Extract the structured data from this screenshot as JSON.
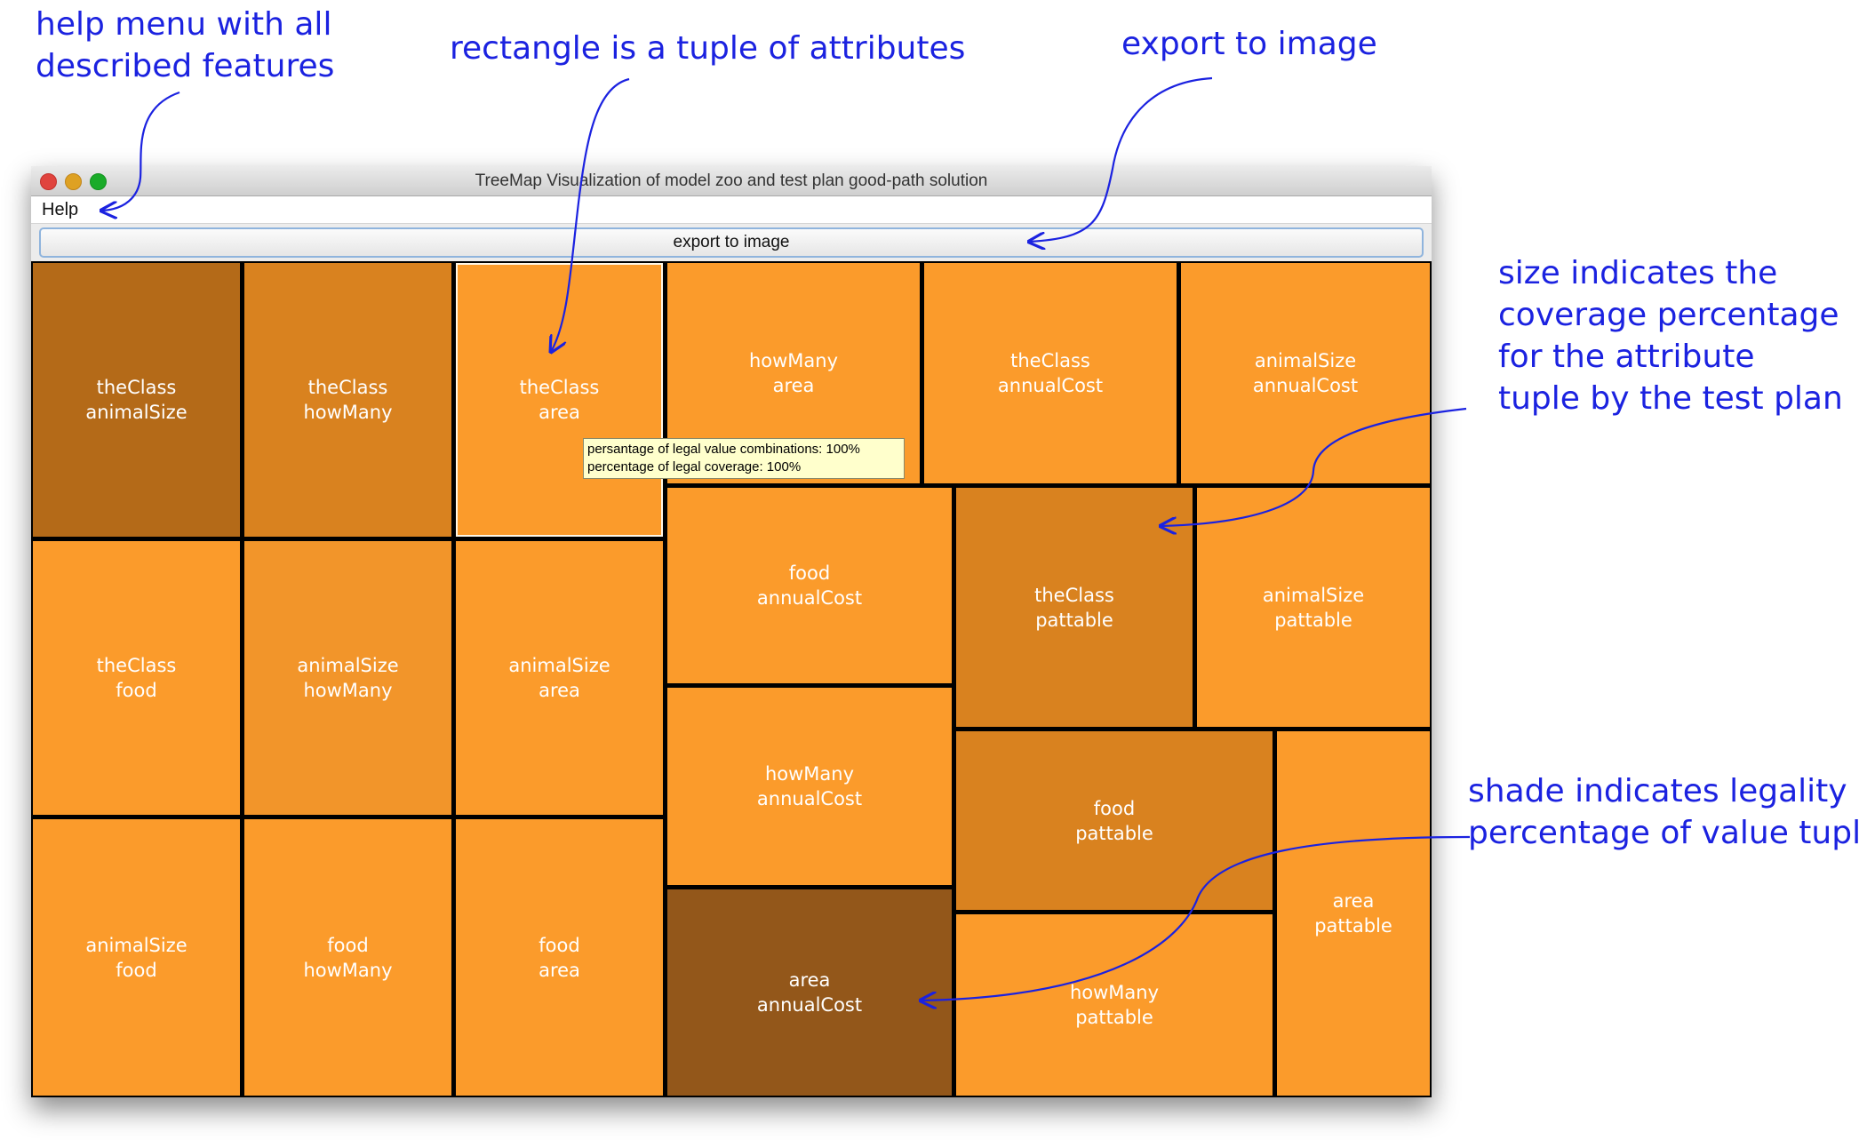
{
  "annotations": {
    "help_menu": [
      "help menu with all",
      "described features"
    ],
    "rectangle": "rectangle is a tuple of attributes",
    "export": "export to image",
    "size": [
      "size indicates the",
      "coverage percentage",
      "for the attribute",
      "tuple by the test plan"
    ],
    "shade": [
      "shade indicates legality",
      "percentage of value tuples"
    ]
  },
  "window": {
    "title": "TreeMap Visualization of model zoo and test plan good-path solution",
    "menu_help": "Help",
    "export_button": "export to image"
  },
  "tooltip": {
    "line1": "persantage of legal value combinations: 100%",
    "line2": "percentage of legal coverage: 100%"
  },
  "colors": {
    "annotation": "#1b22e0",
    "tile_light": "#fb9b2b",
    "tile_medium": "#d9821f",
    "tile_dark1": "#b46a18",
    "tile_dark2": "#93571a",
    "divider": "#000000"
  },
  "tiles": [
    {
      "line1": "theClass",
      "line2": "animalSize",
      "shade": "#b46a18"
    },
    {
      "line1": "theClass",
      "line2": "howMany",
      "shade": "#d9821f"
    },
    {
      "line1": "theClass",
      "line2": "area",
      "shade": "#fb9b2b"
    },
    {
      "line1": "howMany",
      "line2": "area",
      "shade": "#fb9b2b"
    },
    {
      "line1": "theClass",
      "line2": "annualCost",
      "shade": "#fb9b2b"
    },
    {
      "line1": "animalSize",
      "line2": "annualCost",
      "shade": "#fb9b2b"
    },
    {
      "line1": "theClass",
      "line2": "food",
      "shade": "#fb9b2b"
    },
    {
      "line1": "animalSize",
      "line2": "howMany",
      "shade": "#f2952a"
    },
    {
      "line1": "animalSize",
      "line2": "area",
      "shade": "#fb9b2b"
    },
    {
      "line1": "food",
      "line2": "annualCost",
      "shade": "#fb9b2b"
    },
    {
      "line1": "theClass",
      "line2": "pattable",
      "shade": "#d9821f"
    },
    {
      "line1": "animalSize",
      "line2": "pattable",
      "shade": "#fb9b2b"
    },
    {
      "line1": "animalSize",
      "line2": "food",
      "shade": "#fb9b2b"
    },
    {
      "line1": "food",
      "line2": "howMany",
      "shade": "#fb9b2b"
    },
    {
      "line1": "food",
      "line2": "area",
      "shade": "#fb9b2b"
    },
    {
      "line1": "howMany",
      "line2": "annualCost",
      "shade": "#fb9b2b"
    },
    {
      "line1": "food",
      "line2": "pattable",
      "shade": "#d9821f"
    },
    {
      "line1": "area",
      "line2": "pattable",
      "shade": "#fb9b2b"
    },
    {
      "line1": "area",
      "line2": "annualCost",
      "shade": "#93571a"
    },
    {
      "line1": "howMany",
      "line2": "pattable",
      "shade": "#fb9b2b"
    }
  ]
}
